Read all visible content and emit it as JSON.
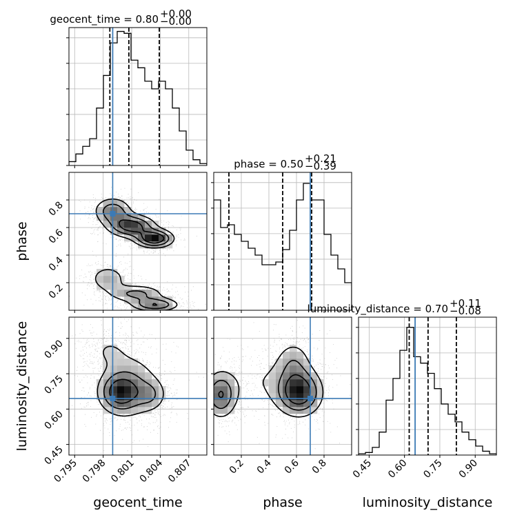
{
  "chart_data": {
    "type": "corner",
    "truth_color": "#3b7ab5",
    "params": [
      {
        "name": "geocent_time",
        "range": [
          0.7944,
          0.8089
        ],
        "ticks": [
          0.795,
          0.798,
          0.801,
          0.804,
          0.807
        ],
        "tick_labels": [
          "0.795",
          "0.798",
          "0.801",
          "0.804",
          "0.807"
        ],
        "truth": 0.799,
        "quantiles": [
          0.7987,
          0.8007,
          0.8039
        ],
        "title_main": "geocent_time = 0.80",
        "title_plus": "+0.00",
        "title_minus": "−0.00",
        "hist_values": [
          2,
          6,
          10,
          14,
          30,
          47,
          64,
          70,
          69,
          55,
          51,
          44,
          40,
          44,
          40,
          30,
          18,
          8,
          3,
          1
        ],
        "hist_max": 72
      },
      {
        "name": "phase",
        "range": [
          0.0,
          1.0
        ],
        "ticks": [
          0.2,
          0.4,
          0.6,
          0.8
        ],
        "tick_labels": [
          "0.2",
          "0.4",
          "0.6",
          "0.8"
        ],
        "truth": 0.7,
        "quantiles": [
          0.11,
          0.5,
          0.71
        ],
        "title_main": "phase = 0.50",
        "title_plus": "+0.21",
        "title_minus": "−0.39",
        "hist_values": [
          80,
          60,
          62,
          55,
          50,
          45,
          40,
          33,
          33,
          35,
          44,
          58,
          80,
          92,
          80,
          80,
          55,
          40,
          30,
          20
        ],
        "hist_max": 100
      },
      {
        "name": "luminosity_distance",
        "range": [
          0.405,
          0.99
        ],
        "ticks": [
          0.45,
          0.6,
          0.75,
          0.9
        ],
        "tick_labels": [
          "0.45",
          "0.60",
          "0.75",
          "0.90"
        ],
        "truth": 0.645,
        "quantiles": [
          0.62,
          0.7,
          0.82
        ],
        "title_main": "luminosity_distance = 0.70",
        "title_plus": "+0.11",
        "title_minus": "−0.08",
        "hist_values": [
          1,
          2,
          6,
          18,
          43,
          60,
          82,
          100,
          77,
          72,
          64,
          52,
          40,
          32,
          26,
          18,
          12,
          7,
          3,
          1
        ],
        "hist_max": 108
      }
    ],
    "pairs": [
      {
        "x": "geocent_time",
        "y": "phase",
        "lobes": [
          {
            "cx": 0.799,
            "cy": 0.72,
            "sx": 0.0012,
            "sy": 0.06,
            "peak": 0.55
          },
          {
            "cx": 0.801,
            "cy": 0.61,
            "sx": 0.0015,
            "sy": 0.05,
            "peak": 0.75
          },
          {
            "cx": 0.8034,
            "cy": 0.52,
            "sx": 0.0012,
            "sy": 0.04,
            "peak": 0.85
          },
          {
            "cx": 0.7985,
            "cy": 0.23,
            "sx": 0.0012,
            "sy": 0.06,
            "peak": 0.35
          },
          {
            "cx": 0.8015,
            "cy": 0.12,
            "sx": 0.0018,
            "sy": 0.04,
            "peak": 0.45
          },
          {
            "cx": 0.8035,
            "cy": 0.04,
            "sx": 0.0015,
            "sy": 0.03,
            "peak": 0.6
          }
        ]
      },
      {
        "x": "geocent_time",
        "y": "luminosity_distance",
        "lobes": [
          {
            "cx": 0.7997,
            "cy": 0.67,
            "sx": 0.0013,
            "sy": 0.05,
            "peak": 0.9
          },
          {
            "cx": 0.801,
            "cy": 0.7,
            "sx": 0.002,
            "sy": 0.09,
            "peak": 0.5
          },
          {
            "cx": 0.803,
            "cy": 0.66,
            "sx": 0.001,
            "sy": 0.04,
            "peak": 0.4
          },
          {
            "cx": 0.7985,
            "cy": 0.85,
            "sx": 0.0015,
            "sy": 0.05,
            "peak": 0.25
          }
        ]
      },
      {
        "x": "phase",
        "y": "luminosity_distance",
        "lobes": [
          {
            "cx": 0.05,
            "cy": 0.66,
            "sx": 0.07,
            "sy": 0.06,
            "peak": 0.7
          },
          {
            "cx": 0.62,
            "cy": 0.67,
            "sx": 0.1,
            "sy": 0.06,
            "peak": 0.95
          },
          {
            "cx": 0.35,
            "cy": 0.72,
            "sx": 0.18,
            "sy": 0.08,
            "peak": 0.2
          },
          {
            "cx": 0.58,
            "cy": 0.8,
            "sx": 0.08,
            "sy": 0.06,
            "peak": 0.35
          }
        ]
      }
    ]
  }
}
